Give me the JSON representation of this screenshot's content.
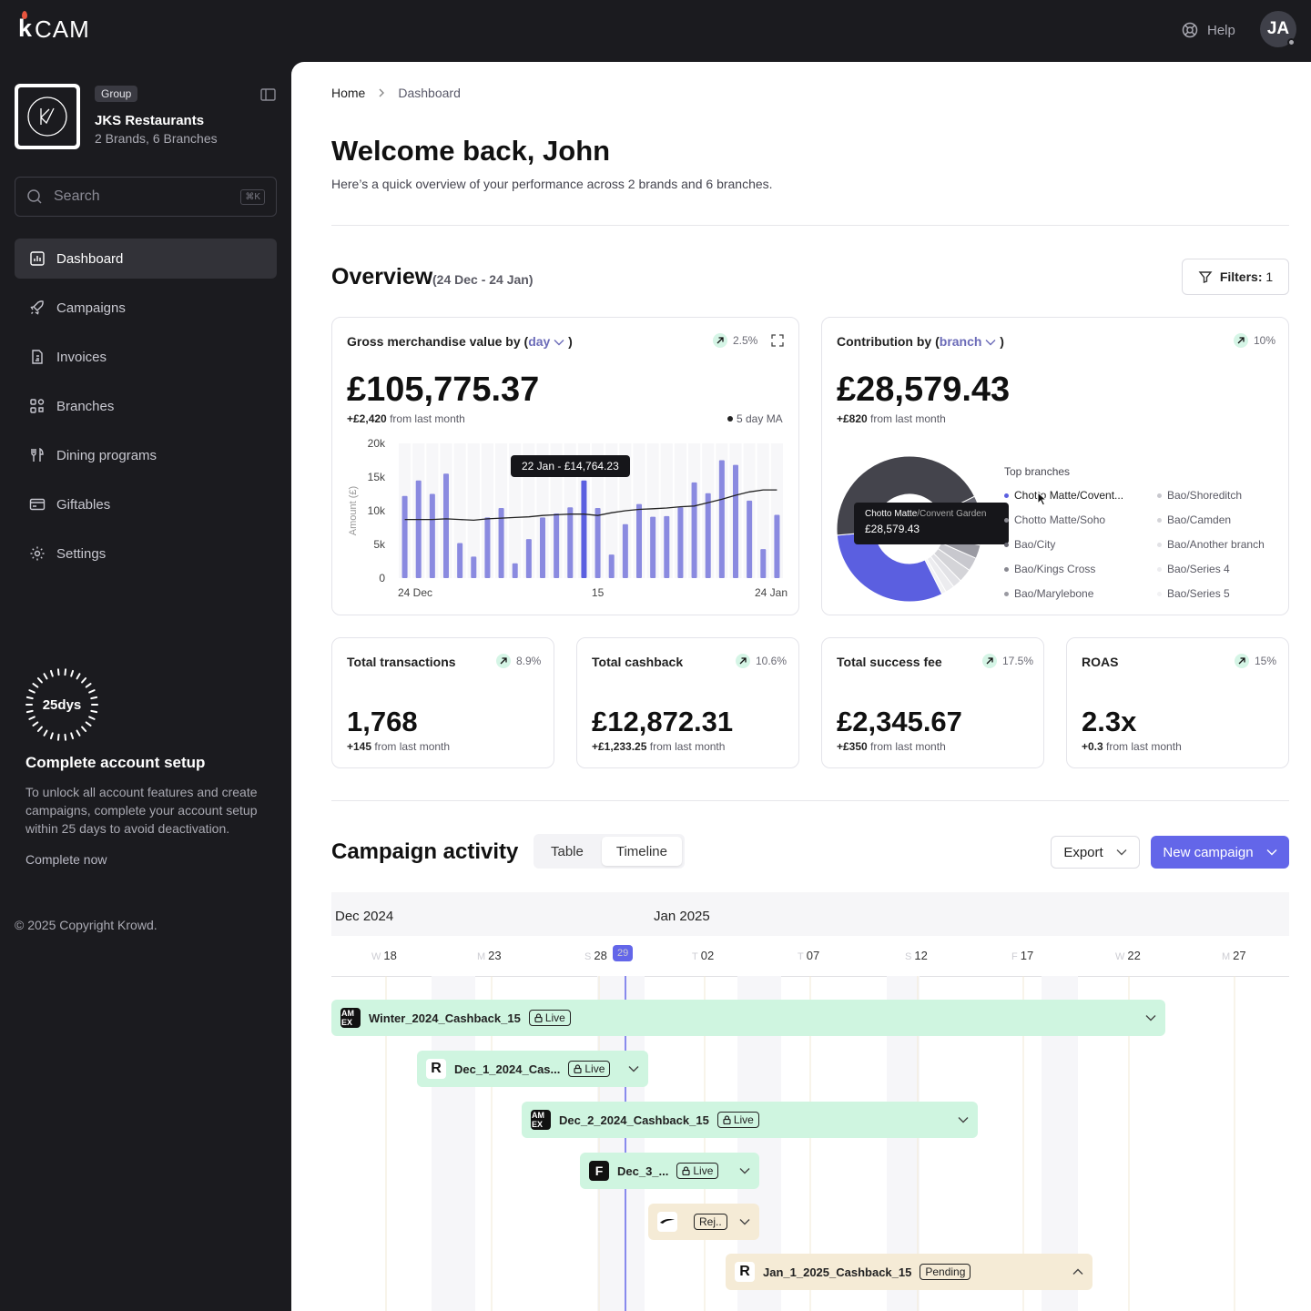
{
  "app": {
    "logo_k": "k",
    "logo_text": "CAM",
    "help": "Help",
    "avatar": "JA"
  },
  "org": {
    "badge": "Group",
    "name": "JKS Restaurants",
    "sub": "2 Brands, 6 Branches"
  },
  "search": {
    "placeholder": "Search",
    "shortcut": "⌘K"
  },
  "nav": [
    {
      "label": "Dashboard",
      "icon": "chart-icon",
      "active": true
    },
    {
      "label": "Campaigns",
      "icon": "rocket-icon"
    },
    {
      "label": "Invoices",
      "icon": "invoice-icon"
    },
    {
      "label": "Branches",
      "icon": "branches-icon"
    },
    {
      "label": "Dining programs",
      "icon": "utensils-icon"
    },
    {
      "label": "Giftables",
      "icon": "card-icon"
    },
    {
      "label": "Settings",
      "icon": "gear-icon"
    }
  ],
  "setup": {
    "days": "25dys",
    "title": "Complete account setup",
    "text": "To unlock all account features and create campaigns, complete your account setup within 25 days to avoid deactivation.",
    "link": "Complete now"
  },
  "copyright": "© 2025 Copyright Krowd.",
  "breadcrumb": {
    "home": "Home",
    "current": "Dashboard"
  },
  "welcome": {
    "title": "Welcome back, John",
    "sub": "Here’s a quick overview of your performance across 2 brands and 6 branches."
  },
  "overview": {
    "title": "Overview",
    "range": "(24 Dec - 24 Jan)",
    "filters_label": "Filters:",
    "filters_count": "1"
  },
  "gmv": {
    "title_pre": "Gross merchandise value by (",
    "selector": "day",
    "title_post": ")",
    "trend": "2.5%",
    "value": "£105,775.37",
    "delta": "+£2,420",
    "delta_text": "from last month",
    "ma_label": "5 day MA",
    "tooltip_date": "22 Jan",
    "tooltip_value": "£14,764.23"
  },
  "chart_data": {
    "type": "bar",
    "ylabel": "Amount (£)",
    "ylim": [
      0,
      20000
    ],
    "yticks": [
      "20k",
      "15k",
      "10k",
      "5k",
      "0"
    ],
    "xticks": [
      "24 Dec",
      "15",
      "24 Jan"
    ],
    "series": [
      {
        "values": [
          12200,
          14500,
          12500,
          15500,
          5200,
          3200,
          9000,
          10400,
          2200,
          5800,
          9000,
          9600,
          10500,
          14500,
          10400,
          3500,
          8000,
          11000,
          9100,
          9200,
          10500,
          14200,
          12600,
          17500,
          16800,
          11500,
          4300,
          9400
        ]
      },
      {
        "name": "5 day MA",
        "values": [
          8700,
          8700,
          8700,
          8800,
          8700,
          8600,
          8800,
          8900,
          9000,
          9100,
          9300,
          9400,
          9500,
          9500,
          9300,
          9700,
          10000,
          10200,
          10300,
          10400,
          10600,
          10700,
          11200,
          11700,
          12300,
          12800,
          13100,
          13100
        ]
      }
    ],
    "highlight_index": 13
  },
  "contribution": {
    "title_pre": "Contribution by (",
    "selector": "branch",
    "title_post": ")",
    "trend": "10%",
    "value": "£28,579.43",
    "delta": "+£820",
    "delta_text": "from last month",
    "legend_title": "Top branches",
    "tooltip_brand": "Chotto Matte",
    "tooltip_branch": "/Convent Garden",
    "tooltip_value": "£28,579.43",
    "branches": [
      {
        "label": "Chotto Matte/Covent...",
        "color": "#5b5fe0"
      },
      {
        "label": "Chotto Matte/Soho",
        "color": "#8a8a92"
      },
      {
        "label": "Bao/City",
        "color": "#666670"
      },
      {
        "label": "Bao/Kings Cross",
        "color": "#888890"
      },
      {
        "label": "Bao/Marylebone",
        "color": "#9a9aa2"
      },
      {
        "label": "Bao/Shoreditch",
        "color": "#c8c8ce"
      },
      {
        "label": "Bao/Camden",
        "color": "#d4d4d8"
      },
      {
        "label": "Bao/Another branch",
        "color": "#e2e2e6"
      },
      {
        "label": "Bao/Series 4",
        "color": "#ececef"
      },
      {
        "label": "Bao/Series 5",
        "color": "#f2f2f4"
      }
    ],
    "donut_shares": [
      31,
      44,
      7,
      4,
      3,
      3,
      3,
      2,
      2,
      1
    ]
  },
  "stats": [
    {
      "title": "Total transactions",
      "trend": "8.9%",
      "value": "1,768",
      "delta": "+145",
      "delta_text": "from last month"
    },
    {
      "title": "Total cashback",
      "trend": "10.6%",
      "value": "£12,872.31",
      "delta": "+£1,233.25",
      "delta_text": "from last month"
    },
    {
      "title": "Total success fee",
      "trend": "17.5%",
      "value": "£2,345.67",
      "delta": "+£350",
      "delta_text": "from last month"
    },
    {
      "title": "ROAS",
      "trend": "15%",
      "value": "2.3x",
      "delta": "+0.3",
      "delta_text": "from last month"
    }
  ],
  "activity": {
    "title": "Campaign activity",
    "tab_table": "Table",
    "tab_timeline": "Timeline",
    "export": "Export",
    "new_campaign": "New campaign",
    "month1": "Dec 2024",
    "month2": "Jan 2025",
    "days": [
      {
        "w": "W",
        "d": "18"
      },
      {
        "w": "M",
        "d": "23"
      },
      {
        "w": "S",
        "d": "28"
      },
      {
        "w": "",
        "d": "29"
      },
      {
        "w": "T",
        "d": "02"
      },
      {
        "w": "T",
        "d": "07"
      },
      {
        "w": "S",
        "d": "12"
      },
      {
        "w": "F",
        "d": "17"
      },
      {
        "w": "W",
        "d": "22"
      },
      {
        "w": "M",
        "d": "27"
      }
    ],
    "campaigns": [
      {
        "name": "Winter_2024_Cashback_15",
        "status": "Live",
        "brand": "AM EX",
        "brand_dark": true
      },
      {
        "name": "Dec_1_2024_Cas...",
        "status": "Live",
        "brand": "R",
        "brand_dark": false
      },
      {
        "name": "Dec_2_2024_Cashback_15",
        "status": "Live",
        "brand": "AM EX",
        "brand_dark": true
      },
      {
        "name": "Dec_3_...",
        "status": "Live",
        "brand": "F",
        "brand_dark": true
      },
      {
        "name": "",
        "status": "Rej..",
        "brand": "",
        "brand_dark": false
      },
      {
        "name": "Jan_1_2025_Cashback_15",
        "status": "Pending",
        "brand": "R",
        "brand_dark": false
      }
    ]
  },
  "colors": {
    "accent": "#6366e9",
    "live": "#cff5e0",
    "pending": "#f5ebd6",
    "sidebar": "#1b1b1f"
  }
}
